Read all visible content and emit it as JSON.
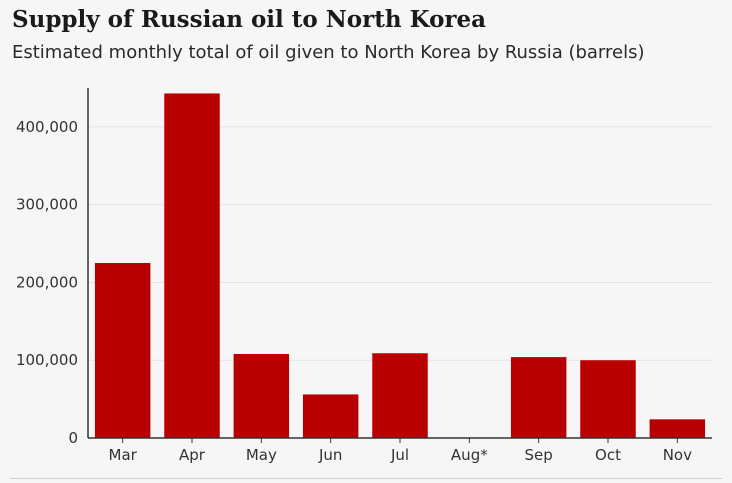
{
  "title": "Supply of Russian oil to North Korea",
  "subtitle": "Estimated monthly total of oil given to North Korea by Russia (barrels)",
  "colors": {
    "bar": "#b80000",
    "axis": "#333333",
    "grid": "#e4e4e4",
    "background": "#f6f6f6"
  },
  "chart_data": {
    "type": "bar",
    "title": "Supply of Russian oil to North Korea",
    "subtitle": "Estimated monthly total of oil given to North Korea by Russia (barrels)",
    "categories": [
      "Mar",
      "Apr",
      "May",
      "Jun",
      "Jul",
      "Aug*",
      "Sep",
      "Oct",
      "Nov"
    ],
    "values": [
      225000,
      443000,
      108000,
      56000,
      109000,
      0,
      104000,
      100000,
      24000
    ],
    "xlabel": "",
    "ylabel": "",
    "ylim": [
      0,
      450000
    ],
    "yticks": [
      0,
      100000,
      200000,
      300000,
      400000
    ],
    "ytick_labels": [
      "0",
      "100,000",
      "200,000",
      "300,000",
      "400,000"
    ],
    "grid": true,
    "legend": false
  }
}
